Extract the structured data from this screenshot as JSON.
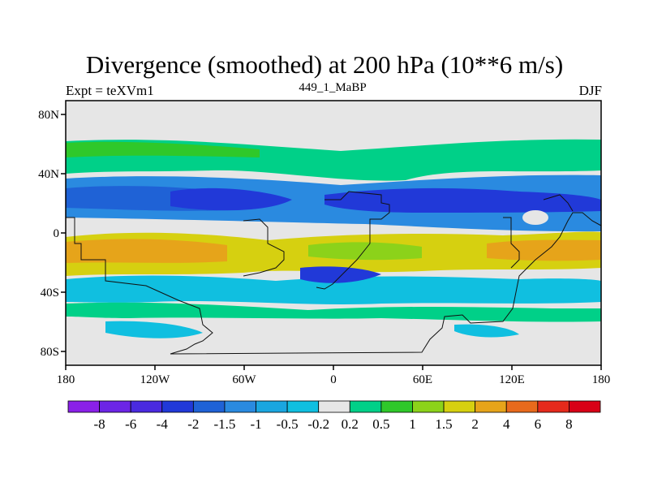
{
  "chart_data": {
    "type": "heatmap",
    "title": "Divergence (smoothed) at 200 hPa (10**6 m/s)",
    "left_label": "Expt = teXVm1",
    "center_label": "449_1_MaBP",
    "right_label": "DJF",
    "x_ticks": [
      "180",
      "120W",
      "60W",
      "0",
      "60E",
      "120E",
      "180"
    ],
    "y_ticks": [
      "80N",
      "40N",
      "0",
      "40S",
      "80S"
    ],
    "xlim": [
      -180,
      180
    ],
    "ylim": [
      -90,
      90
    ],
    "colorbar_labels": [
      "-8",
      "-6",
      "-4",
      "-2",
      "-1.5",
      "-1",
      "-0.5",
      "-0.2",
      "0.2",
      "0.5",
      "1",
      "1.5",
      "2",
      "4",
      "6",
      "8"
    ],
    "colorbar_colors": [
      "#8a20e8",
      "#6c25e6",
      "#4a2ae0",
      "#2139d8",
      "#1f62d6",
      "#2a8ae0",
      "#1aa6e0",
      "#10bfe0",
      "#e6e6e6",
      "#00d088",
      "#2fc82a",
      "#8cd21a",
      "#d6d010",
      "#e6a41a",
      "#e86a1c",
      "#e52a1c",
      "#d80016"
    ]
  }
}
